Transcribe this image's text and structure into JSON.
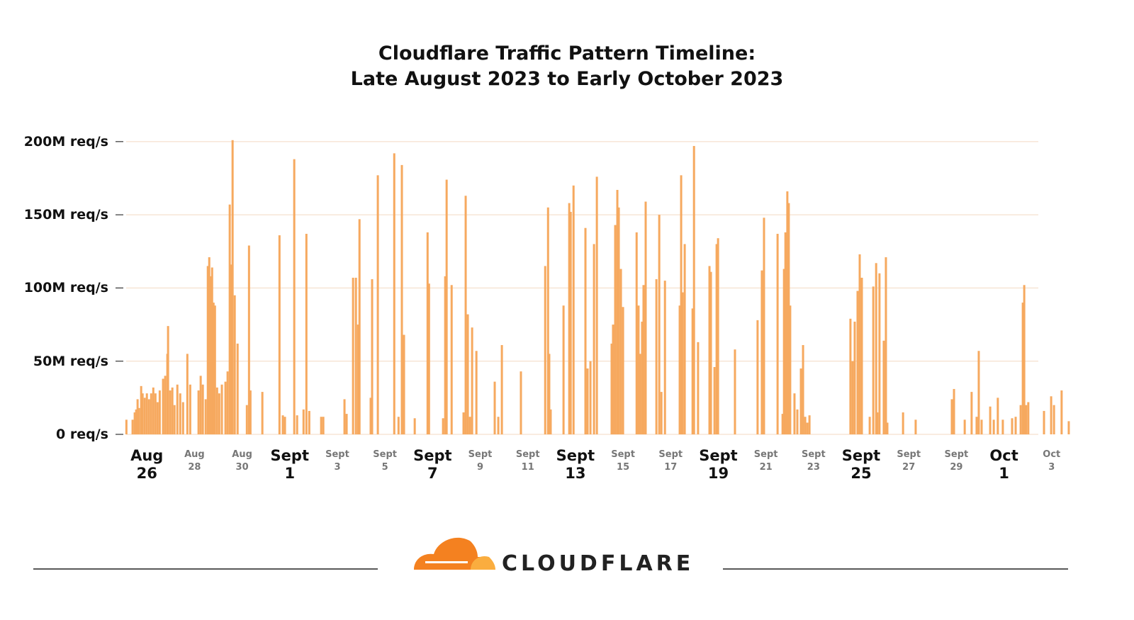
{
  "chart_data": {
    "type": "bar",
    "title": "Cloudflare Traffic Pattern Timeline:\nLate August 2023 to Early October 2023",
    "color": "#f6a95f",
    "grid": true,
    "ylim": [
      0,
      228
    ],
    "yticks": [
      {
        "value": 0,
        "label": "0 req/s"
      },
      {
        "value": 50,
        "label": "50M req/s"
      },
      {
        "value": 100,
        "label": "100M req/s"
      },
      {
        "value": 150,
        "label": "150M req/s"
      },
      {
        "value": 200,
        "label": "200M req/s"
      }
    ],
    "xlim": [
      -0.9,
      38.9
    ],
    "xticks_major": [
      {
        "value": 0,
        "label": "Aug\n26"
      },
      {
        "value": 6,
        "label": "Sept\n1"
      },
      {
        "value": 12,
        "label": "Sept\n7"
      },
      {
        "value": 18,
        "label": "Sept\n13"
      },
      {
        "value": 24,
        "label": "Sept\n19"
      },
      {
        "value": 30,
        "label": "Sept\n25"
      },
      {
        "value": 36,
        "label": "Oct\n1"
      }
    ],
    "xticks_minor": [
      {
        "value": 2,
        "label": "Aug\n28"
      },
      {
        "value": 4,
        "label": "Aug\n30"
      },
      {
        "value": 8,
        "label": "Sept\n3"
      },
      {
        "value": 10,
        "label": "Sept\n5"
      },
      {
        "value": 14,
        "label": "Sept\n9"
      },
      {
        "value": 16,
        "label": "Sept\n11"
      },
      {
        "value": 20,
        "label": "Sept\n15"
      },
      {
        "value": 22,
        "label": "Sept\n17"
      },
      {
        "value": 26,
        "label": "Sept\n21"
      },
      {
        "value": 28,
        "label": "Sept\n23"
      },
      {
        "value": 32,
        "label": "Sept\n27"
      },
      {
        "value": 34,
        "label": "Sept\n29"
      },
      {
        "value": 38,
        "label": "Oct\n3"
      }
    ],
    "x": [
      -0.86,
      -0.6,
      -0.51,
      -0.45,
      -0.39,
      -0.33,
      -0.24,
      -0.18,
      -0.09,
      0,
      0.09,
      0.18,
      0.27,
      0.36,
      0.45,
      0.54,
      0.68,
      0.77,
      0.86,
      0.89,
      0.98,
      1.07,
      1.16,
      1.28,
      1.4,
      1.52,
      1.7,
      1.82,
      2.17,
      2.26,
      2.35,
      2.47,
      2.56,
      2.62,
      2.68,
      2.74,
      2.8,
      2.86,
      2.95,
      3.04,
      3.15,
      3.3,
      3.39,
      3.48,
      3.54,
      3.6,
      3.69,
      3.81,
      4.2,
      4.29,
      4.35,
      4.85,
      5.57,
      5.71,
      5.8,
      6.19,
      6.31,
      6.58,
      6.7,
      6.82,
      7.32,
      7.41,
      8.3,
      8.39,
      8.66,
      8.78,
      8.87,
      8.93,
      9.4,
      9.46,
      9.7,
      10.39,
      10.57,
      10.71,
      10.8,
      11.25,
      11.79,
      11.85,
      12.44,
      12.53,
      12.59,
      12.8,
      13.3,
      13.39,
      13.48,
      13.57,
      13.66,
      13.84,
      14.61,
      14.76,
      14.91,
      15.71,
      16.73,
      16.85,
      16.9,
      16.96,
      17.5,
      17.74,
      17.8,
      17.92,
      18.42,
      18.51,
      18.63,
      18.78,
      18.9,
      19.52,
      19.58,
      19.67,
      19.76,
      19.82,
      19.91,
      20.0,
      20.57,
      20.65,
      20.71,
      20.8,
      20.86,
      20.95,
      21.4,
      21.52,
      21.61,
      21.76,
      22.38,
      22.44,
      22.5,
      22.59,
      22.92,
      22.98,
      23.15,
      23.63,
      23.69,
      23.84,
      23.93,
      23.99,
      24.7,
      25.65,
      25.83,
      25.92,
      26.49,
      26.7,
      26.76,
      26.82,
      26.9,
      26.96,
      27.02,
      27.2,
      27.32,
      27.47,
      27.56,
      27.65,
      27.74,
      27.83,
      29.55,
      29.64,
      29.73,
      29.85,
      29.94,
      30.03,
      30.36,
      30.51,
      30.63,
      30.68,
      30.77,
      30.95,
      31.04,
      31.1,
      31.76,
      32.29,
      33.81,
      33.9,
      34.35,
      34.64,
      34.85,
      34.94,
      35.06,
      35.42,
      35.57,
      35.74,
      35.95,
      36.34,
      36.49,
      36.7,
      36.79,
      36.85,
      36.93,
      37.02,
      37.68,
      37.98,
      38.1,
      38.42,
      38.72
    ],
    "values": [
      10,
      10,
      15,
      17,
      24,
      18,
      33,
      28,
      25,
      28,
      24,
      28,
      32,
      28,
      22,
      30,
      38,
      40,
      55,
      74,
      30,
      32,
      20,
      34,
      28,
      22,
      55,
      34,
      30,
      40,
      34,
      24,
      115,
      121,
      108,
      114,
      90,
      88,
      32,
      28,
      34,
      36,
      43,
      157,
      116,
      201,
      95,
      62,
      20,
      129,
      30,
      29,
      136,
      13,
      12,
      188,
      13,
      17,
      137,
      16,
      12,
      12,
      24,
      14,
      107,
      107,
      75,
      147,
      25,
      106,
      177,
      192,
      12,
      184,
      68,
      11,
      138,
      103,
      11,
      108,
      174,
      102,
      15,
      163,
      82,
      12,
      73,
      57,
      36,
      12,
      61,
      43,
      115,
      155,
      55,
      17,
      88,
      158,
      152,
      170,
      141,
      45,
      50,
      130,
      176,
      62,
      75,
      143,
      167,
      155,
      113,
      87,
      138,
      88,
      55,
      77,
      102,
      159,
      106,
      150,
      29,
      105,
      88,
      177,
      97,
      130,
      86,
      197,
      63,
      115,
      111,
      46,
      130,
      134,
      58,
      78,
      112,
      148,
      137,
      14,
      113,
      138,
      166,
      158,
      88,
      28,
      17,
      45,
      61,
      12,
      8,
      13,
      79,
      50,
      77,
      98,
      123,
      107,
      12,
      101,
      117,
      15,
      110,
      64,
      121,
      8,
      15,
      10,
      24,
      31,
      10,
      29,
      12,
      57,
      10,
      19,
      10,
      25,
      10,
      11,
      12,
      20,
      90,
      102,
      20,
      22,
      16,
      26,
      20,
      30,
      9
    ]
  },
  "logo": {
    "text": "CLOUDFLARE"
  }
}
